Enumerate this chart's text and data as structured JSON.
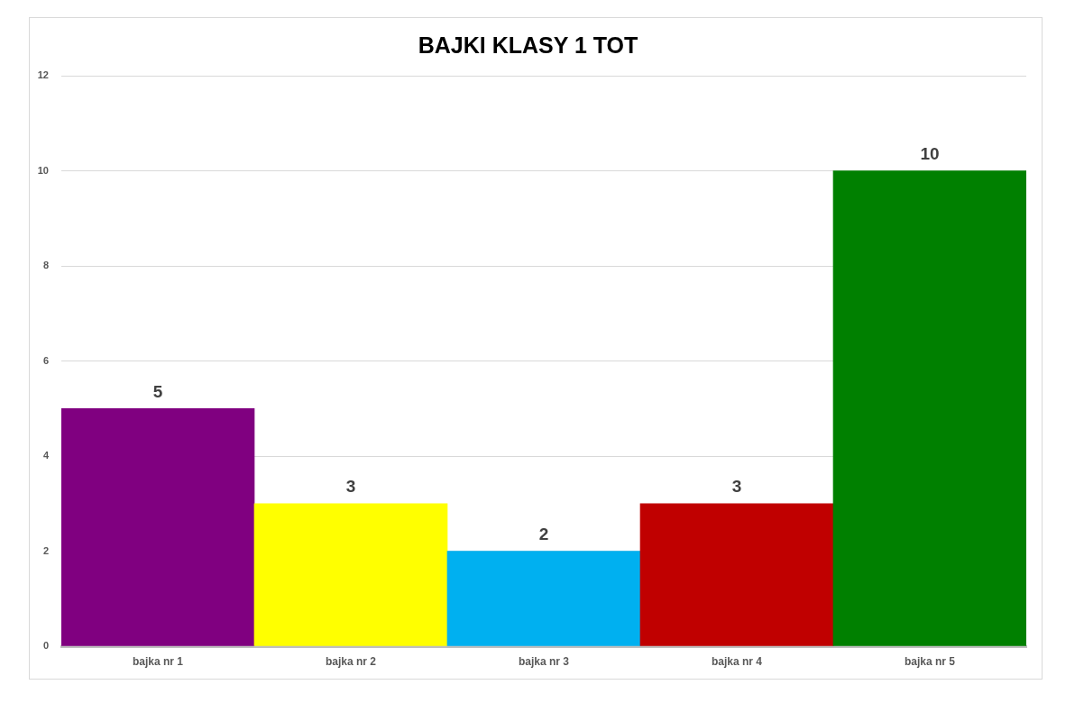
{
  "chart_data": {
    "type": "bar",
    "title": "BAJKI KLASY 1 TOT",
    "categories": [
      "bajka nr 1",
      "bajka nr 2",
      "bajka nr 3",
      "bajka nr 4",
      "bajka nr 5"
    ],
    "values": [
      5,
      3,
      2,
      3,
      10
    ],
    "colors": [
      "#800080",
      "#ffff00",
      "#00b0f0",
      "#c00000",
      "#008000"
    ],
    "ylim": [
      0,
      12
    ],
    "yticks": [
      0,
      2,
      4,
      6,
      8,
      10,
      12
    ],
    "grid": "y",
    "data_labels": true
  }
}
